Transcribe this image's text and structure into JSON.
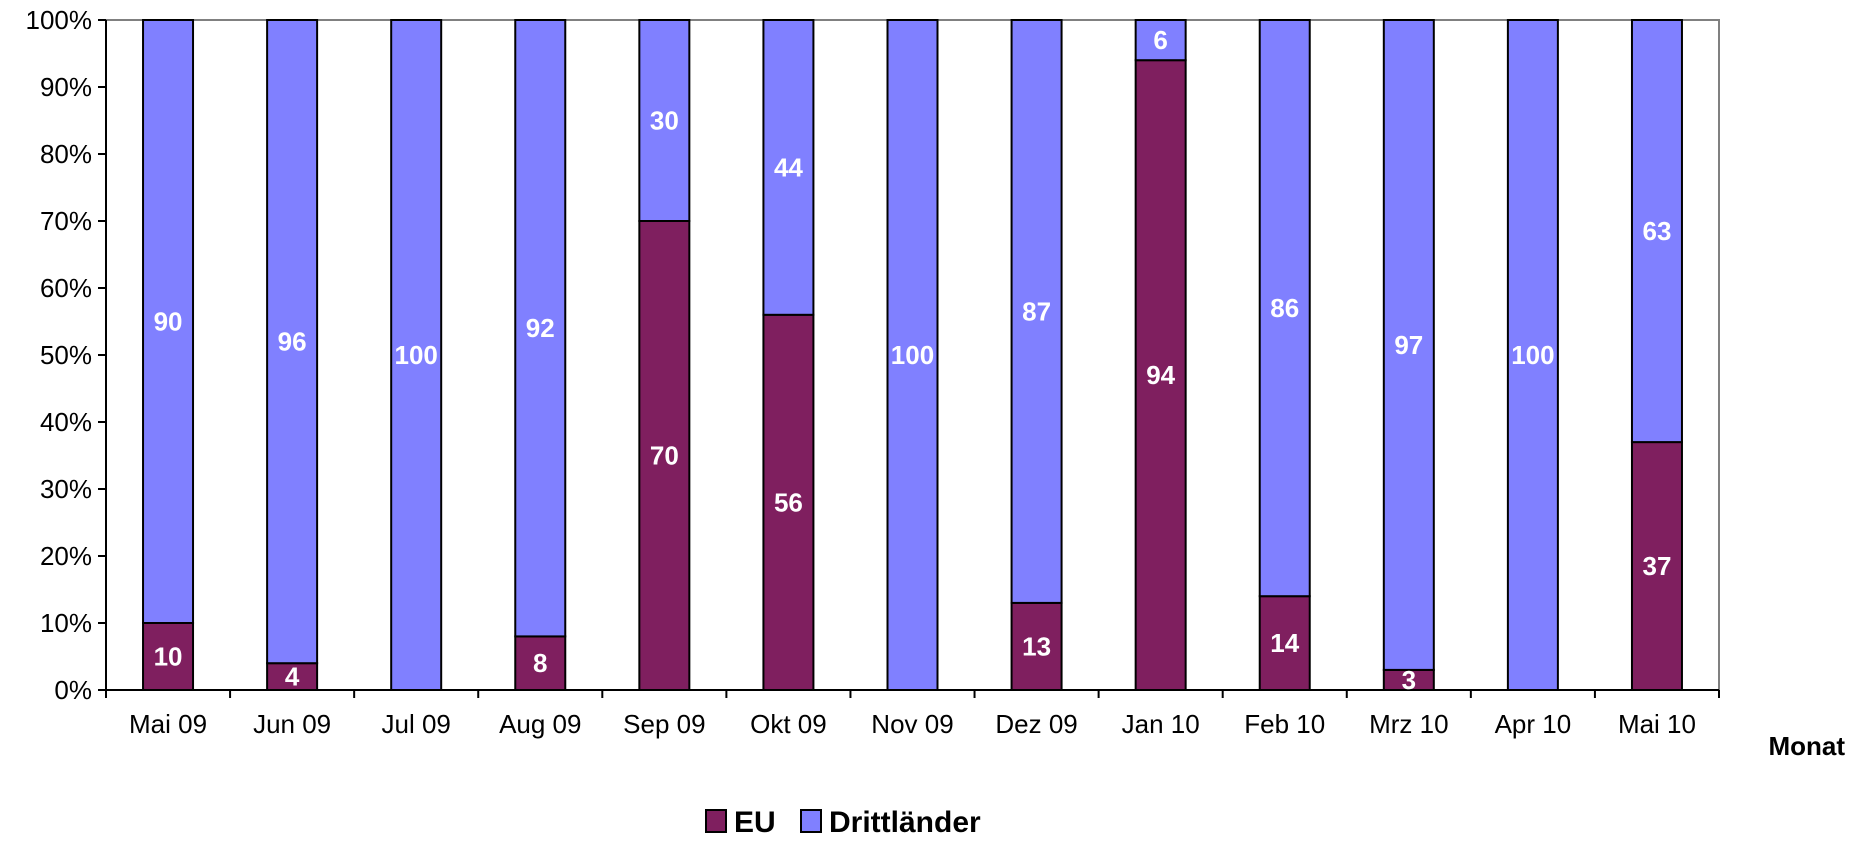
{
  "chart_data": {
    "type": "bar",
    "stacked": true,
    "percent": true,
    "categories": [
      "Mai 09",
      "Jun 09",
      "Jul 09",
      "Aug 09",
      "Sep 09",
      "Okt 09",
      "Nov 09",
      "Dez 09",
      "Jan 10",
      "Feb 10",
      "Mrz 10",
      "Apr 10",
      "Mai 10"
    ],
    "series": [
      {
        "name": "EU",
        "color": "#7f1f5f",
        "values": [
          10,
          4,
          0,
          8,
          70,
          56,
          0,
          13,
          94,
          14,
          3,
          0,
          37
        ]
      },
      {
        "name": "Drittländer",
        "color": "#8080ff",
        "values": [
          90,
          96,
          100,
          92,
          30,
          44,
          100,
          87,
          6,
          86,
          97,
          100,
          63
        ]
      }
    ],
    "xlabel": "Monat",
    "ylabel": "",
    "ylim": [
      0,
      100
    ],
    "yticks": [
      "0%",
      "10%",
      "20%",
      "30%",
      "40%",
      "50%",
      "60%",
      "70%",
      "80%",
      "90%",
      "100%"
    ],
    "grid": false,
    "legend": "bottom"
  }
}
